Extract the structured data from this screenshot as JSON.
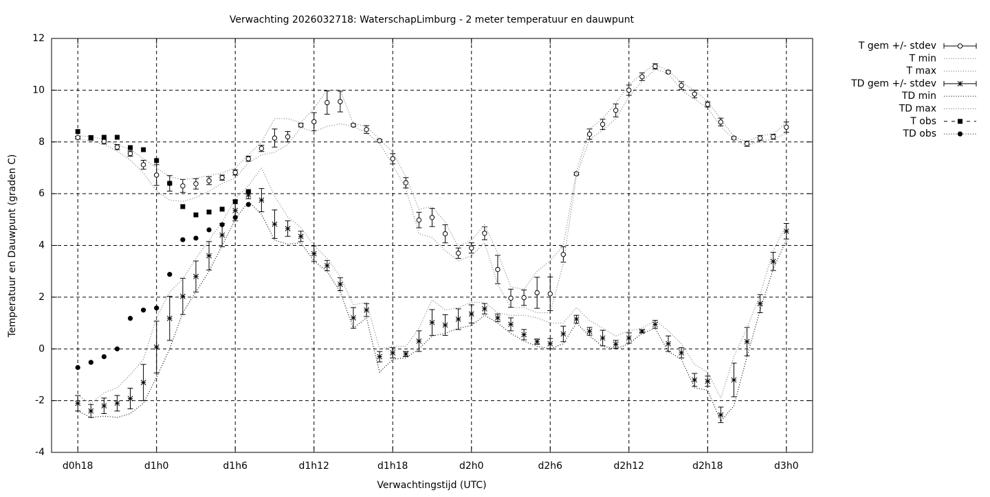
{
  "chart_data": {
    "type": "errorline",
    "title": "Verwachting 2026032718: WaterschapLimburg - 2 meter temperatuur en dauwpunt",
    "x_label": "Verwachtingstijd (UTC)",
    "y_label": "Temperatuur en Dauwpunt (graden C)",
    "x": [
      18,
      19,
      20,
      21,
      22,
      23,
      24,
      25,
      26,
      27,
      28,
      29,
      30,
      31,
      32,
      33,
      34,
      35,
      36,
      37,
      38,
      39,
      40,
      41,
      42,
      43,
      44,
      45,
      46,
      47,
      48,
      49,
      50,
      51,
      52,
      53,
      54,
      55,
      56,
      57,
      58,
      59,
      60,
      61,
      62,
      63,
      64,
      65,
      66,
      67,
      68,
      69,
      70,
      71,
      72
    ],
    "xlim": [
      16,
      74
    ],
    "xticks": [
      {
        "value": 18,
        "label": "d0h18"
      },
      {
        "value": 24,
        "label": "d1h0"
      },
      {
        "value": 30,
        "label": "d1h6"
      },
      {
        "value": 36,
        "label": "d1h12"
      },
      {
        "value": 42,
        "label": "d1h18"
      },
      {
        "value": 48,
        "label": "d2h0"
      },
      {
        "value": 54,
        "label": "d2h6"
      },
      {
        "value": 60,
        "label": "d2h12"
      },
      {
        "value": 66,
        "label": "d2h18"
      },
      {
        "value": 72,
        "label": "d3h0"
      }
    ],
    "ylim": [
      -4,
      12
    ],
    "yticks": [
      -4,
      -2,
      0,
      2,
      4,
      6,
      8,
      10,
      12
    ],
    "grid": true,
    "legend": "outside-right",
    "series": [
      {
        "name": "T gem +/- stdev",
        "style": "errorbars",
        "marker": "circle",
        "color": "#000000",
        "values": [
          8.17,
          8.15,
          8.02,
          7.8,
          7.55,
          7.12,
          6.72,
          6.4,
          6.3,
          6.38,
          6.5,
          6.62,
          6.82,
          7.35,
          7.75,
          8.15,
          8.2,
          8.65,
          8.78,
          9.52,
          9.56,
          8.65,
          8.48,
          8.05,
          7.35,
          6.42,
          4.98,
          5.08,
          4.45,
          3.7,
          3.9,
          4.47,
          3.07,
          1.96,
          1.98,
          2.17,
          2.13,
          3.65,
          6.77,
          8.3,
          8.68,
          9.22,
          10.0,
          10.52,
          10.92,
          10.7,
          10.18,
          9.85,
          9.45,
          8.77,
          8.15,
          7.93,
          8.15,
          8.2,
          8.57
        ],
        "errors": [
          0.05,
          0.08,
          0.1,
          0.1,
          0.1,
          0.17,
          0.4,
          0.3,
          0.25,
          0.2,
          0.15,
          0.1,
          0.1,
          0.1,
          0.12,
          0.35,
          0.2,
          0.07,
          0.35,
          0.45,
          0.4,
          0.05,
          0.15,
          0.05,
          0.2,
          0.2,
          0.3,
          0.35,
          0.35,
          0.2,
          0.2,
          0.25,
          0.55,
          0.35,
          0.3,
          0.6,
          0.65,
          0.3,
          0.05,
          0.2,
          0.2,
          0.25,
          0.2,
          0.15,
          0.1,
          0.05,
          0.15,
          0.15,
          0.1,
          0.15,
          0.05,
          0.1,
          0.1,
          0.1,
          0.2
        ]
      },
      {
        "name": "T min",
        "style": "line",
        "color": "#777777",
        "values": [
          8.1,
          8.05,
          7.9,
          7.65,
          7.3,
          6.8,
          6.1,
          5.75,
          5.7,
          5.85,
          6.1,
          6.4,
          6.6,
          7.2,
          7.5,
          7.6,
          7.9,
          8.55,
          8.4,
          8.6,
          8.7,
          8.6,
          8.35,
          7.95,
          7.1,
          6.2,
          4.45,
          4.3,
          3.8,
          3.4,
          3.6,
          4.1,
          2.5,
          1.6,
          1.6,
          1.4,
          1.4,
          3.3,
          6.7,
          8.1,
          8.45,
          8.9,
          9.75,
          10.35,
          10.8,
          10.65,
          10.0,
          9.65,
          9.3,
          8.6,
          8.1,
          7.85,
          8.05,
          8.1,
          8.35
        ]
      },
      {
        "name": "T max",
        "style": "line",
        "color": "#777777",
        "values": [
          8.25,
          8.2,
          8.1,
          7.9,
          7.7,
          7.35,
          7.0,
          6.65,
          6.55,
          6.6,
          6.7,
          6.8,
          7.0,
          7.5,
          8.0,
          8.9,
          8.9,
          8.75,
          9.3,
          10.0,
          10.0,
          8.7,
          8.6,
          8.1,
          7.6,
          6.65,
          5.4,
          5.5,
          4.9,
          3.95,
          4.2,
          4.8,
          3.7,
          2.4,
          2.3,
          3.0,
          3.4,
          4.0,
          6.85,
          8.5,
          8.9,
          9.5,
          10.2,
          10.65,
          11.0,
          10.75,
          10.3,
          10.0,
          9.55,
          8.9,
          8.2,
          8.0,
          8.25,
          8.3,
          8.75
        ]
      },
      {
        "name": "TD gem +/- stdev",
        "style": "errorbars",
        "marker": "star",
        "color": "#000000",
        "values": [
          -2.1,
          -2.4,
          -2.2,
          -2.1,
          -1.92,
          -1.3,
          0.07,
          1.18,
          2.03,
          2.8,
          3.6,
          4.4,
          5.35,
          5.95,
          5.75,
          4.82,
          4.65,
          4.35,
          3.68,
          3.22,
          2.5,
          1.2,
          1.5,
          -0.3,
          -0.15,
          -0.2,
          0.3,
          1.02,
          0.92,
          1.15,
          1.35,
          1.55,
          1.2,
          0.95,
          0.55,
          0.28,
          0.2,
          0.58,
          1.15,
          0.68,
          0.42,
          0.18,
          0.42,
          0.68,
          0.95,
          0.2,
          -0.15,
          -1.2,
          -1.25,
          -2.55,
          -1.2,
          0.28,
          1.75,
          3.38,
          4.55
        ],
        "errors": [
          0.3,
          0.25,
          0.3,
          0.3,
          0.4,
          0.7,
          1.0,
          0.85,
          0.7,
          0.6,
          0.55,
          0.45,
          0.4,
          0.15,
          0.45,
          0.55,
          0.3,
          0.2,
          0.3,
          0.2,
          0.25,
          0.4,
          0.25,
          0.2,
          0.2,
          0.1,
          0.4,
          0.5,
          0.4,
          0.4,
          0.35,
          0.2,
          0.15,
          0.25,
          0.2,
          0.1,
          0.2,
          0.3,
          0.15,
          0.15,
          0.3,
          0.15,
          0.2,
          0.05,
          0.15,
          0.3,
          0.2,
          0.25,
          0.2,
          0.3,
          0.65,
          0.55,
          0.35,
          0.35,
          0.3
        ]
      },
      {
        "name": "TD min",
        "style": "line",
        "color": "#000000",
        "values": [
          -2.4,
          -2.65,
          -2.6,
          -2.65,
          -2.5,
          -2.1,
          -1.1,
          0.0,
          1.4,
          2.2,
          3.0,
          4.0,
          5.0,
          5.7,
          5.2,
          4.2,
          4.05,
          4.1,
          3.4,
          3.0,
          2.2,
          0.8,
          1.2,
          -0.9,
          -0.4,
          -0.35,
          0.0,
          0.5,
          0.6,
          0.8,
          0.9,
          1.3,
          1.0,
          0.6,
          0.3,
          0.1,
          0.0,
          0.2,
          1.0,
          0.5,
          0.1,
          0.0,
          0.2,
          0.6,
          0.8,
          -0.1,
          -0.4,
          -1.5,
          -1.6,
          -2.8,
          -2.2,
          -0.3,
          1.5,
          3.1,
          4.2
        ]
      },
      {
        "name": "TD max",
        "style": "line",
        "color": "#777777",
        "values": [
          -1.8,
          -2.1,
          -1.7,
          -1.5,
          -1.0,
          -0.4,
          1.2,
          2.2,
          2.7,
          3.5,
          4.2,
          4.9,
          5.8,
          6.3,
          7.0,
          5.9,
          5.1,
          4.7,
          4.0,
          3.5,
          2.8,
          1.7,
          1.8,
          0.0,
          0.1,
          0.1,
          0.8,
          1.9,
          1.5,
          1.6,
          1.8,
          1.8,
          1.4,
          1.3,
          1.3,
          1.2,
          1.0,
          1.0,
          1.6,
          1.1,
          0.8,
          0.5,
          0.7,
          0.8,
          1.1,
          0.7,
          0.2,
          -0.6,
          -0.9,
          -1.9,
          -0.3,
          0.8,
          2.1,
          3.8,
          4.8
        ]
      },
      {
        "name": "T obs",
        "style": "points",
        "marker": "square",
        "color": "#000000",
        "values": [
          8.4,
          8.17,
          8.18,
          8.18,
          7.78,
          7.7,
          7.28,
          6.4,
          5.5,
          5.18,
          5.29,
          5.4,
          5.69,
          6.08,
          null,
          null,
          null,
          null,
          null,
          null,
          null,
          null,
          null,
          null,
          null,
          null,
          null,
          null,
          null,
          null,
          null,
          null,
          null,
          null,
          null,
          null,
          null,
          null,
          null,
          null,
          null,
          null,
          null,
          null,
          null,
          null,
          null,
          null,
          null,
          null,
          null,
          null,
          null,
          null,
          null
        ]
      },
      {
        "name": "TD obs",
        "style": "points",
        "marker": "dot",
        "color": "#000000",
        "values": [
          -0.72,
          -0.52,
          -0.3,
          0.0,
          1.18,
          1.5,
          1.58,
          2.88,
          4.22,
          4.28,
          4.6,
          4.8,
          5.08,
          5.58,
          null,
          null,
          null,
          null,
          null,
          null,
          null,
          null,
          null,
          null,
          null,
          null,
          null,
          null,
          null,
          null,
          null,
          null,
          null,
          null,
          null,
          null,
          null,
          null,
          null,
          null,
          null,
          null,
          null,
          null,
          null,
          null,
          null,
          null,
          null,
          null,
          null,
          null,
          null,
          null,
          null
        ]
      }
    ]
  }
}
